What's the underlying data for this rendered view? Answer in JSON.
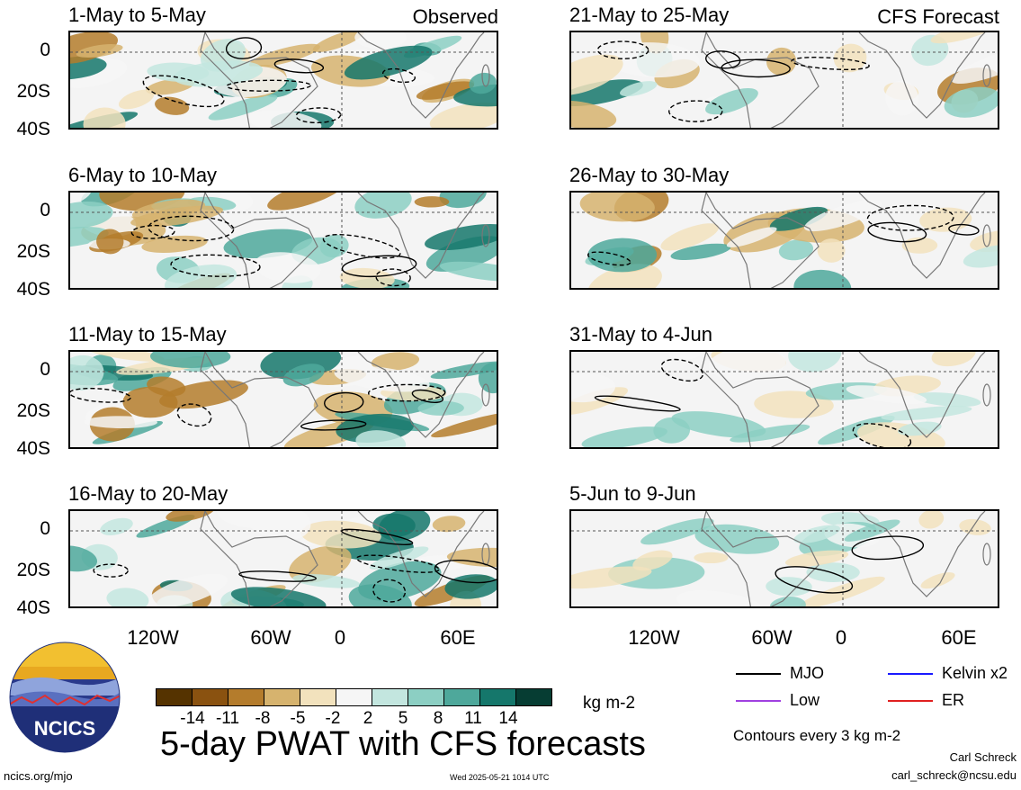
{
  "panels": [
    {
      "title": "1-May to 5-May",
      "tag": "Observed",
      "type": "observed"
    },
    {
      "title": "6-May to 10-May",
      "tag": "",
      "type": "observed"
    },
    {
      "title": "11-May to 15-May",
      "tag": "",
      "type": "observed"
    },
    {
      "title": "16-May to 20-May",
      "tag": "",
      "type": "observed"
    },
    {
      "title": "21-May to 25-May",
      "tag": "CFS Forecast",
      "type": "forecast"
    },
    {
      "title": "26-May to 30-May",
      "tag": "",
      "type": "forecast"
    },
    {
      "title": "31-May to 4-Jun",
      "tag": "",
      "type": "forecast"
    },
    {
      "title": "5-Jun to 9-Jun",
      "tag": "",
      "type": "forecast"
    }
  ],
  "y_ticks": [
    "0",
    "20S",
    "40S"
  ],
  "x_ticks": [
    "120W",
    "60W",
    "0",
    "60E"
  ],
  "colorbar": {
    "colors": [
      "#553300",
      "#8a5210",
      "#b47c2c",
      "#d6b36e",
      "#f2e2bd",
      "#f6f6f6",
      "#c3e6df",
      "#8ccfc3",
      "#4ea89b",
      "#15776b",
      "#063d33"
    ],
    "labels": [
      "-14",
      "-11",
      "-8",
      "-5",
      "-2",
      "2",
      "5",
      "8",
      "11",
      "14"
    ],
    "units": "kg m-2"
  },
  "legend": [
    {
      "label": "MJO",
      "color": "#000000"
    },
    {
      "label": "Kelvin x2",
      "color": "#1a1aff"
    },
    {
      "label": "Low",
      "color": "#a040e0"
    },
    {
      "label": "ER",
      "color": "#e02020"
    }
  ],
  "contour_note": "Contours every 3 kg m-2",
  "main_title": "5-day PWAT with CFS forecasts",
  "logo_text": "NCICS",
  "footer": {
    "left": "ncics.org/mjo",
    "center": "Wed 2025-05-21 1014 UTC",
    "right_name": "Carl Schreck",
    "right_email": "carl_schreck@ncsu.edu"
  },
  "chart_data": {
    "type": "heatmap",
    "variable": "5-day PWAT anomaly",
    "units": "kg m-2",
    "x": [
      "120W",
      "60W",
      "0",
      "60E"
    ],
    "y": [
      "0",
      "20S",
      "40S"
    ],
    "color_levels": [
      -14,
      -11,
      -8,
      -5,
      -2,
      2,
      5,
      8,
      11,
      14
    ],
    "contour_interval": 3,
    "panels": [
      {
        "title": "1-May to 5-May",
        "source": "Observed"
      },
      {
        "title": "6-May to 10-May",
        "source": "Observed"
      },
      {
        "title": "11-May to 15-May",
        "source": "Observed"
      },
      {
        "title": "16-May to 20-May",
        "source": "Observed"
      },
      {
        "title": "21-May to 25-May",
        "source": "CFS Forecast"
      },
      {
        "title": "26-May to 30-May",
        "source": "CFS Forecast"
      },
      {
        "title": "31-May to 4-Jun",
        "source": "CFS Forecast"
      },
      {
        "title": "5-Jun to 9-Jun",
        "source": "CFS Forecast"
      }
    ],
    "legend": [
      "MJO",
      "Kelvin x2",
      "Low",
      "ER"
    ]
  }
}
